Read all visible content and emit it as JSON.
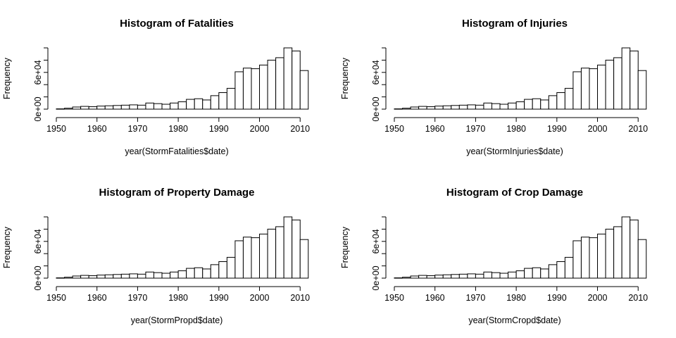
{
  "chart_data": [
    {
      "type": "bar",
      "title": "Histogram of Fatalities",
      "xlabel": "year(StormFatalities$date)",
      "ylabel": "Frequency",
      "xlim": [
        1950,
        2011
      ],
      "ylim": [
        0,
        100000
      ],
      "x_ticks": [
        "1950",
        "1960",
        "1970",
        "1980",
        "1990",
        "2000",
        "2010"
      ],
      "y_ticks": [
        "0e+00",
        "6e+04"
      ],
      "bin_edges": [
        1950,
        1952,
        1954,
        1956,
        1958,
        1960,
        1962,
        1964,
        1966,
        1968,
        1970,
        1972,
        1974,
        1976,
        1978,
        1980,
        1982,
        1984,
        1986,
        1988,
        1990,
        1992,
        1994,
        1996,
        1998,
        2000,
        2002,
        2004,
        2006,
        2008,
        2010,
        2012
      ],
      "values": [
        500,
        1500,
        3500,
        4500,
        4000,
        5000,
        5500,
        6000,
        6500,
        7000,
        6500,
        10000,
        9000,
        8000,
        10000,
        12000,
        16000,
        17000,
        15000,
        22000,
        27000,
        34000,
        61000,
        67000,
        66000,
        72000,
        80000,
        84000,
        100000,
        95000,
        63000
      ]
    },
    {
      "type": "bar",
      "title": "Histogram of Injuries",
      "xlabel": "year(StormInjuries$date)",
      "ylabel": "Frequency",
      "xlim": [
        1950,
        2011
      ],
      "ylim": [
        0,
        100000
      ],
      "x_ticks": [
        "1950",
        "1960",
        "1970",
        "1980",
        "1990",
        "2000",
        "2010"
      ],
      "y_ticks": [
        "0e+00",
        "6e+04"
      ],
      "bin_edges": [
        1950,
        1952,
        1954,
        1956,
        1958,
        1960,
        1962,
        1964,
        1966,
        1968,
        1970,
        1972,
        1974,
        1976,
        1978,
        1980,
        1982,
        1984,
        1986,
        1988,
        1990,
        1992,
        1994,
        1996,
        1998,
        2000,
        2002,
        2004,
        2006,
        2008,
        2010,
        2012
      ],
      "values": [
        500,
        1500,
        3500,
        4500,
        4000,
        5000,
        5500,
        6000,
        6500,
        7000,
        6500,
        10000,
        9000,
        8000,
        10000,
        12000,
        16000,
        17000,
        15000,
        22000,
        27000,
        34000,
        61000,
        67000,
        66000,
        72000,
        80000,
        84000,
        100000,
        95000,
        63000
      ]
    },
    {
      "type": "bar",
      "title": "Histogram of Property Damage",
      "xlabel": "year(StormPropd$date)",
      "ylabel": "Frequency",
      "xlim": [
        1950,
        2011
      ],
      "ylim": [
        0,
        100000
      ],
      "x_ticks": [
        "1950",
        "1960",
        "1970",
        "1980",
        "1990",
        "2000",
        "2010"
      ],
      "y_ticks": [
        "0e+00",
        "6e+04"
      ],
      "bin_edges": [
        1950,
        1952,
        1954,
        1956,
        1958,
        1960,
        1962,
        1964,
        1966,
        1968,
        1970,
        1972,
        1974,
        1976,
        1978,
        1980,
        1982,
        1984,
        1986,
        1988,
        1990,
        1992,
        1994,
        1996,
        1998,
        2000,
        2002,
        2004,
        2006,
        2008,
        2010,
        2012
      ],
      "values": [
        500,
        1500,
        3500,
        4500,
        4000,
        5000,
        5500,
        6000,
        6500,
        7000,
        6500,
        10000,
        9000,
        8000,
        10000,
        12000,
        16000,
        17000,
        15000,
        22000,
        27000,
        34000,
        61000,
        67000,
        66000,
        72000,
        80000,
        84000,
        100000,
        95000,
        63000
      ]
    },
    {
      "type": "bar",
      "title": "Histogram of Crop Damage",
      "xlabel": "year(StormCropd$date)",
      "ylabel": "Frequency",
      "xlim": [
        1950,
        2011
      ],
      "ylim": [
        0,
        100000
      ],
      "x_ticks": [
        "1950",
        "1960",
        "1970",
        "1980",
        "1990",
        "2000",
        "2010"
      ],
      "y_ticks": [
        "0e+00",
        "6e+04"
      ],
      "bin_edges": [
        1950,
        1952,
        1954,
        1956,
        1958,
        1960,
        1962,
        1964,
        1966,
        1968,
        1970,
        1972,
        1974,
        1976,
        1978,
        1980,
        1982,
        1984,
        1986,
        1988,
        1990,
        1992,
        1994,
        1996,
        1998,
        2000,
        2002,
        2004,
        2006,
        2008,
        2010,
        2012
      ],
      "values": [
        500,
        1500,
        3500,
        4500,
        4000,
        5000,
        5500,
        6000,
        6500,
        7000,
        6500,
        10000,
        9000,
        8000,
        10000,
        12000,
        16000,
        17000,
        15000,
        22000,
        27000,
        34000,
        61000,
        67000,
        66000,
        72000,
        80000,
        84000,
        100000,
        95000,
        63000
      ]
    }
  ]
}
